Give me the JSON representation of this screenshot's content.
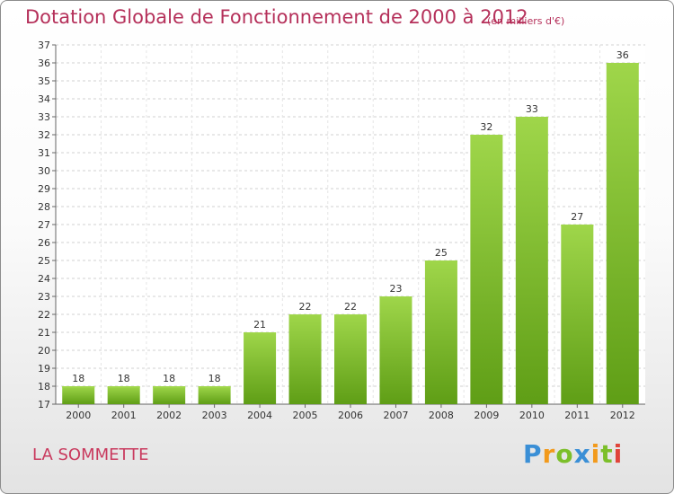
{
  "chart_data": {
    "type": "bar",
    "title": "Dotation Globale de Fonctionnement de 2000 à 2012",
    "subtitle": "(en milliers d'€)",
    "categories": [
      "2000",
      "2001",
      "2002",
      "2003",
      "2004",
      "2005",
      "2006",
      "2007",
      "2008",
      "2009",
      "2010",
      "2011",
      "2012"
    ],
    "values": [
      18,
      18,
      18,
      18,
      21,
      22,
      22,
      23,
      25,
      32,
      33,
      27,
      36
    ],
    "ylim": [
      17,
      37
    ],
    "yticks": [
      17,
      18,
      19,
      20,
      21,
      22,
      23,
      24,
      25,
      26,
      27,
      28,
      29,
      30,
      31,
      32,
      33,
      34,
      35,
      36,
      37
    ],
    "grid": true,
    "legend": "none",
    "bar_color": "#7bbf2e",
    "bar_color_light": "#9fd64a",
    "bar_color_dark": "#5f9e16"
  },
  "footer": {
    "commune": "LA SOMMETTE",
    "logo_letters": [
      {
        "ch": "P",
        "color": "#3a8fd6"
      },
      {
        "ch": "r",
        "color": "#f29a1c"
      },
      {
        "ch": "o",
        "color": "#7cbf2a"
      },
      {
        "ch": "x",
        "color": "#3a8fd6"
      },
      {
        "ch": "i",
        "color": "#f29a1c"
      },
      {
        "ch": "t",
        "color": "#7cbf2a"
      },
      {
        "ch": "i",
        "color": "#e0443a"
      }
    ]
  }
}
